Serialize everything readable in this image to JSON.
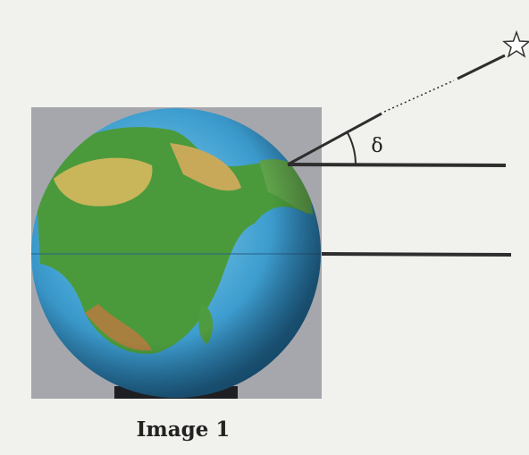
{
  "angle_label": "δ",
  "caption": "Image 1"
}
